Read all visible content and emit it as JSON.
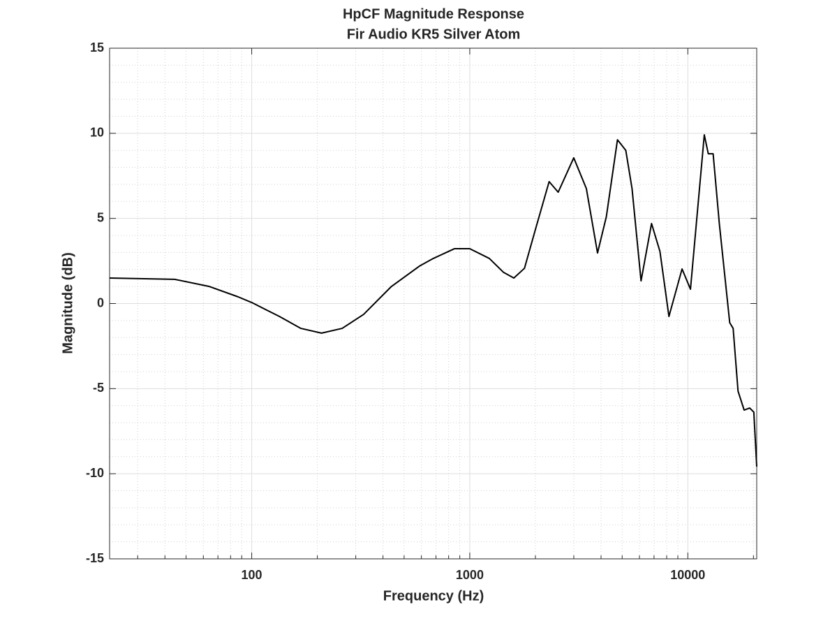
{
  "chart_data": {
    "type": "line",
    "title": "HpCF Magnitude Response",
    "subtitle": "Fir Audio KR5 Silver Atom",
    "x_label": "Frequency (Hz)",
    "y_label": "Magnitude (dB)",
    "x": [
      22.3,
      44.4,
      64,
      86.3,
      100,
      134,
      168,
      209,
      260,
      326,
      437,
      588,
      681,
      850,
      1000,
      1229,
      1429,
      1593,
      1782,
      1994,
      2312,
      2544,
      2998,
      3426,
      3854,
      4230,
      4757,
      5194,
      5549,
      6103,
      6818,
      7450,
      8192,
      9410,
      10283,
      11900,
      12412,
      13063,
      13946,
      15566,
      16138,
      16995,
      18127,
      19218,
      20076,
      20700
    ],
    "series": [
      {
        "name": "Magnitude",
        "color": "#000000",
        "values": [
          1.5,
          1.42,
          1.0,
          0.4,
          0.06,
          -0.76,
          -1.46,
          -1.74,
          -1.46,
          -0.64,
          1.0,
          2.2,
          2.65,
          3.22,
          3.22,
          2.65,
          1.83,
          1.5,
          2.07,
          4.29,
          7.16,
          6.54,
          8.56,
          6.75,
          2.97,
          5.1,
          9.62,
          9.0,
          6.75,
          1.33,
          4.7,
          3.06,
          -0.76,
          2.03,
          0.84,
          9.91,
          8.8,
          8.8,
          4.7,
          -1.13,
          -1.46,
          -5.15,
          -6.26,
          -6.14,
          -6.38,
          -9.58
        ]
      }
    ],
    "xscale": "log",
    "xlim": [
      22.3,
      20700
    ],
    "ylim": [
      -15,
      15
    ],
    "xticks": [
      100,
      1000,
      10000
    ],
    "yticks": [
      -15,
      -10,
      -5,
      0,
      5,
      10,
      15
    ],
    "xminorticks": [
      30,
      40,
      50,
      60,
      70,
      80,
      90,
      200,
      300,
      400,
      500,
      600,
      700,
      800,
      900,
      2000,
      3000,
      4000,
      5000,
      6000,
      7000,
      8000,
      9000,
      20000
    ],
    "yminorticks": [
      -14,
      -13,
      -12,
      -11,
      -9,
      -8,
      -7,
      -6,
      -4,
      -3,
      -2,
      -1,
      1,
      2,
      3,
      4,
      6,
      7,
      8,
      9,
      11,
      12,
      13,
      14
    ],
    "grid": true,
    "minor_grid": true
  }
}
